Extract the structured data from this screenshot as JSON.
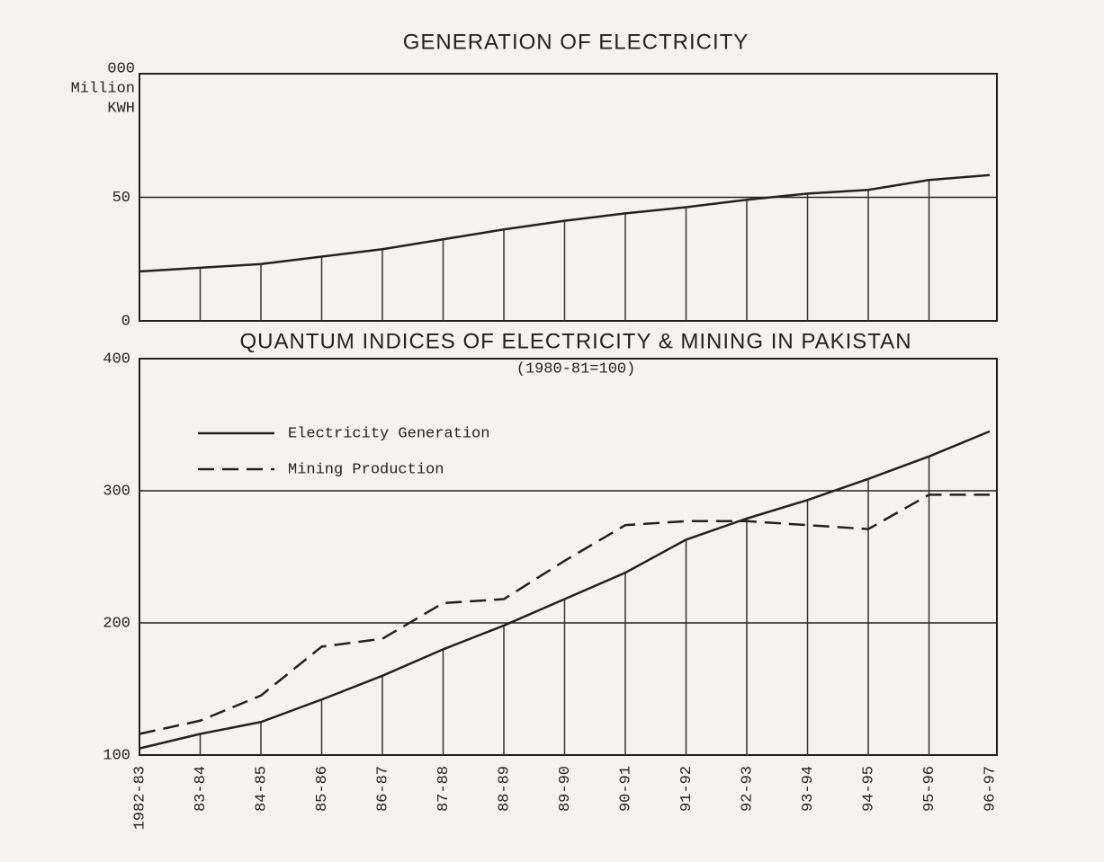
{
  "chart_data": [
    {
      "type": "line",
      "title": "GENERATION OF ELECTRICITY",
      "y_label_lines": [
        "000",
        "Million",
        "KWH"
      ],
      "series": [
        {
          "name": "Generation of Electricity",
          "color": "#222222",
          "style": "solid",
          "values": [
            20,
            21.5,
            23,
            26,
            29,
            33,
            37,
            40.5,
            43.5,
            46,
            49,
            51.5,
            53,
            57,
            59
          ]
        }
      ],
      "ylim": [
        0,
        100
      ],
      "yticks": [
        0,
        50
      ],
      "grid": true,
      "drop_lines": true
    },
    {
      "type": "line",
      "title": "QUANTUM INDICES OF ELECTRICITY & MINING IN PAKISTAN",
      "subtitle": "(1980-81=100)",
      "categories": [
        "1982-83",
        "83-84",
        "84-85",
        "85-86",
        "86-87",
        "87-88",
        "88-89",
        "89-90",
        "90-91",
        "91-92",
        "92-93",
        "93-94",
        "94-95",
        "95-96",
        "96-97"
      ],
      "series": [
        {
          "name": "Electricity Generation",
          "color": "#222222",
          "style": "solid",
          "values": [
            105,
            116,
            125,
            142,
            160,
            180,
            198,
            218,
            238,
            263,
            279,
            293,
            309,
            326,
            345
          ]
        },
        {
          "name": "Mining Production",
          "color": "#222222",
          "style": "dashed",
          "values": [
            116,
            126,
            145,
            182,
            188,
            215,
            218,
            247,
            274,
            277,
            277,
            274,
            271,
            297,
            297
          ]
        }
      ],
      "ylim": [
        100,
        400
      ],
      "yticks": [
        100,
        200,
        300,
        400
      ],
      "grid": true,
      "drop_lines": true,
      "legend": "upper-left"
    }
  ]
}
